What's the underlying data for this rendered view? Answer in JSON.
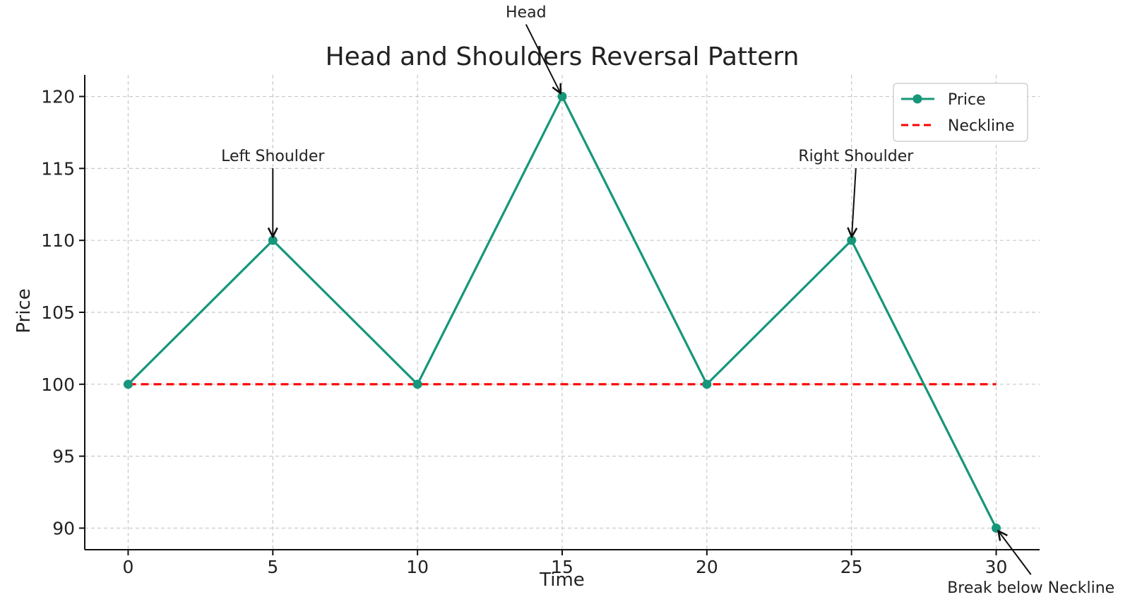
{
  "chart_data": {
    "type": "line",
    "title": "Head and Shoulders Reversal Pattern",
    "xlabel": "Time",
    "ylabel": "Price",
    "xlim": [
      -1.5,
      31.5
    ],
    "ylim": [
      88.5,
      121.5
    ],
    "xticks": [
      0,
      5,
      10,
      15,
      20,
      25,
      30
    ],
    "yticks": [
      90,
      95,
      100,
      105,
      110,
      115,
      120
    ],
    "grid": true,
    "legend_position": "top-right",
    "series": [
      {
        "name": "Price",
        "style": "solid-with-markers",
        "color": "#16967a",
        "x": [
          0,
          5,
          10,
          15,
          20,
          25,
          30
        ],
        "y": [
          100,
          110,
          100,
          120,
          100,
          110,
          90
        ]
      },
      {
        "name": "Neckline",
        "style": "dashed",
        "color": "#ff0000",
        "x": [
          0,
          30
        ],
        "y": [
          100,
          100
        ]
      }
    ],
    "annotations": [
      {
        "text": "Left Shoulder",
        "point": [
          5,
          110
        ],
        "text_pos": [
          5,
          115.5
        ]
      },
      {
        "text": "Head",
        "point": [
          15,
          120
        ],
        "text_pos": [
          13.75,
          125.5
        ]
      },
      {
        "text": "Right Shoulder",
        "point": [
          25,
          110
        ],
        "text_pos": [
          25.15,
          115.5
        ]
      },
      {
        "text": "Break below Neckline",
        "point": [
          30,
          90
        ],
        "text_pos": [
          31.2,
          85.5
        ]
      }
    ]
  }
}
